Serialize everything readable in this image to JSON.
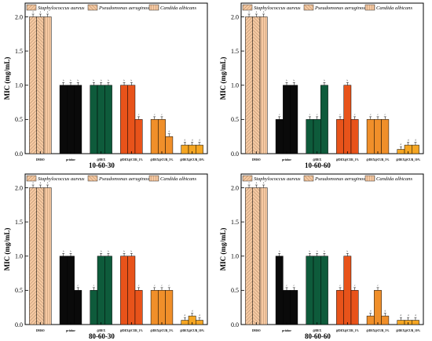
{
  "legend": [
    "Staphylococcus aureus",
    "Pseudomonas aeruginosa",
    "Candida albicans"
  ],
  "colors": {
    "DMSO": "#f6c9a2",
    "pristine": "#0a0a0a",
    "@DEX": "#0e5b3b",
    "@DEX@CUR_1%": "#e8531a",
    "@DEX@CUR_5%": "#f08f2a",
    "@DEX@CUR_10%": "#f5a623"
  },
  "chart_data": [
    {
      "type": "bar",
      "title": "10-60-30",
      "ylabel": "MIC (mg/mL)",
      "ylim": [
        0,
        2.2
      ],
      "yticks": [
        "0.0",
        "0.5",
        "1.0",
        "1.5",
        "2.0"
      ],
      "categories": [
        "DMSO",
        "pristine",
        "@DEX",
        "@DEX@CUR_1%",
        "@DEX@CUR_5%",
        "@DEX@CUR_10%"
      ],
      "series": [
        {
          "name": "Staphylococcus aureus",
          "values": [
            2.0,
            1.0,
            1.0,
            1.0,
            0.5,
            0.125
          ],
          "labels": [
            "a",
            "b",
            "b",
            "b",
            "c",
            "d"
          ]
        },
        {
          "name": "Pseudomonas aeruginosa",
          "values": [
            2.0,
            1.0,
            1.0,
            1.0,
            0.5,
            0.125
          ],
          "labels": [
            "a",
            "b",
            "b",
            "b",
            "c",
            "d"
          ]
        },
        {
          "name": "Candida albicans",
          "values": [
            2.0,
            1.0,
            1.0,
            0.5,
            0.25,
            0.125
          ],
          "labels": [
            "a",
            "b",
            "b",
            "c",
            "d",
            "d"
          ]
        }
      ]
    },
    {
      "type": "bar",
      "title": "10-60-60",
      "ylabel": "MIC (mg/mL)",
      "ylim": [
        0,
        2.2
      ],
      "yticks": [
        "0.0",
        "0.5",
        "1.0",
        "1.5",
        "2.0"
      ],
      "categories": [
        "DMSO",
        "pristine",
        "@DEX",
        "@DEX@CUR_1%",
        "@DEX@CUR_5%",
        "@DEX@CUR_10%"
      ],
      "series": [
        {
          "name": "Staphylococcus aureus",
          "values": [
            2.0,
            0.5,
            0.5,
            0.5,
            0.5,
            0.0625
          ],
          "labels": [
            "a",
            "c",
            "c",
            "c",
            "c",
            "d"
          ]
        },
        {
          "name": "Pseudomonas aeruginosa",
          "values": [
            2.0,
            1.0,
            0.5,
            1.0,
            0.5,
            0.125
          ],
          "labels": [
            "a",
            "b",
            "c",
            "b",
            "c",
            "d"
          ]
        },
        {
          "name": "Candida albicans",
          "values": [
            2.0,
            1.0,
            1.0,
            0.5,
            0.5,
            0.125
          ],
          "labels": [
            "a",
            "b",
            "b",
            "c",
            "c",
            "d"
          ]
        }
      ]
    },
    {
      "type": "bar",
      "title": "80-60-30",
      "ylabel": "MIC (mg/mL)",
      "ylim": [
        0,
        2.2
      ],
      "yticks": [
        "0.0",
        "0.5",
        "1.0",
        "1.5",
        "2.0"
      ],
      "categories": [
        "DMSO",
        "pristine",
        "@DEX",
        "@DEX@CUR_1%",
        "@DEX@CUR_5%",
        "@DEX@CUR_10%"
      ],
      "series": [
        {
          "name": "Staphylococcus aureus",
          "values": [
            2.0,
            1.0,
            0.5,
            1.0,
            0.5,
            0.0625
          ],
          "labels": [
            "a",
            "b",
            "c",
            "b",
            "c",
            "d"
          ]
        },
        {
          "name": "Pseudomonas aeruginosa",
          "values": [
            2.0,
            1.0,
            1.0,
            1.0,
            0.5,
            0.125
          ],
          "labels": [
            "a",
            "b",
            "b",
            "b",
            "c",
            "d"
          ]
        },
        {
          "name": "Candida albicans",
          "values": [
            2.0,
            0.5,
            1.0,
            0.5,
            0.5,
            0.0625
          ],
          "labels": [
            "a",
            "c",
            "b",
            "c",
            "c",
            "d"
          ]
        }
      ]
    },
    {
      "type": "bar",
      "title": "80-60-60",
      "ylabel": "MIC (mg/mL)",
      "ylim": [
        0,
        2.2
      ],
      "yticks": [
        "0.0",
        "0.5",
        "1.0",
        "1.5",
        "2.0"
      ],
      "categories": [
        "DMSO",
        "pristine",
        "@DEX",
        "@DEX@CUR_1%",
        "@DEX@CUR_5%",
        "@DEX@CUR_10%"
      ],
      "series": [
        {
          "name": "Staphylococcus aureus",
          "values": [
            2.0,
            1.0,
            1.0,
            0.5,
            0.125,
            0.0625
          ],
          "labels": [
            "a",
            "b",
            "b",
            "c",
            "d",
            "d"
          ]
        },
        {
          "name": "Pseudomonas aeruginosa",
          "values": [
            2.0,
            0.5,
            1.0,
            1.0,
            0.5,
            0.0625
          ],
          "labels": [
            "a",
            "c",
            "b",
            "b",
            "c",
            "d"
          ]
        },
        {
          "name": "Candida albicans",
          "values": [
            2.0,
            0.5,
            1.0,
            0.5,
            0.125,
            0.0625
          ],
          "labels": [
            "a",
            "c",
            "b",
            "c",
            "d",
            "d"
          ]
        }
      ]
    }
  ]
}
